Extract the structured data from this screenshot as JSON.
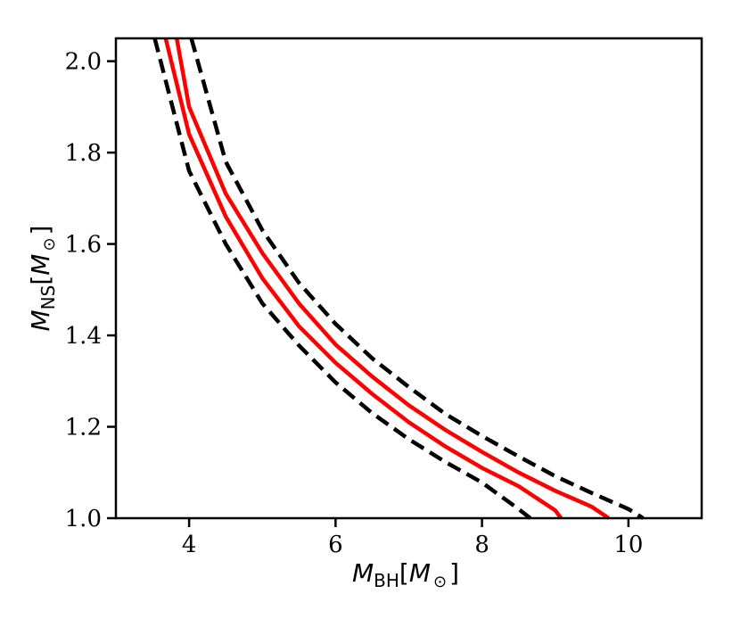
{
  "chart_data": {
    "type": "line",
    "xlabel": {
      "italic": "M",
      "sub": "BH",
      "open": "[",
      "unit": "M",
      "unit_sub": "⊙",
      "close": "]"
    },
    "ylabel": {
      "italic": "M",
      "sub": "NS",
      "open": "[",
      "unit": "M",
      "unit_sub": "⊙",
      "close": "]"
    },
    "xlim": [
      3.0,
      11.0
    ],
    "ylim": [
      1.0,
      2.05
    ],
    "x_ticks": [
      4,
      6,
      8,
      10
    ],
    "x_tick_labels": [
      "4",
      "6",
      "8",
      "10"
    ],
    "y_ticks": [
      1.0,
      1.2,
      1.4,
      1.6,
      1.8,
      2.0
    ],
    "y_tick_labels": [
      "1.0",
      "1.2",
      "1.4",
      "1.6",
      "1.8",
      "2.0"
    ],
    "grid": false,
    "legend": "none",
    "series": [
      {
        "style": "dashed",
        "color": "#000000",
        "x": [
          3.53,
          4.0,
          4.5,
          5.0,
          5.5,
          6.0,
          6.5,
          7.0,
          7.5,
          8.0,
          8.5,
          8.66
        ],
        "y": [
          2.05,
          1.76,
          1.6,
          1.47,
          1.378,
          1.297,
          1.23,
          1.173,
          1.123,
          1.078,
          1.02,
          1.0
        ]
      },
      {
        "style": "solid",
        "color": "#ff0000",
        "x": [
          3.68,
          4.0,
          4.5,
          5.0,
          5.5,
          6.0,
          6.5,
          7.0,
          7.5,
          8.0,
          8.5,
          9.0,
          9.08
        ],
        "y": [
          2.05,
          1.84,
          1.66,
          1.525,
          1.42,
          1.34,
          1.272,
          1.21,
          1.157,
          1.11,
          1.07,
          1.017,
          1.0
        ]
      },
      {
        "style": "solid",
        "color": "#ff0000",
        "x": [
          3.83,
          4.0,
          4.5,
          5.0,
          5.5,
          6.0,
          6.5,
          7.0,
          7.5,
          8.0,
          8.5,
          9.0,
          9.5,
          9.73
        ],
        "y": [
          2.05,
          1.9,
          1.71,
          1.58,
          1.47,
          1.38,
          1.31,
          1.247,
          1.193,
          1.145,
          1.1,
          1.06,
          1.025,
          1.0
        ]
      },
      {
        "style": "dashed",
        "color": "#000000",
        "x": [
          4.03,
          4.5,
          5.0,
          5.5,
          6.0,
          6.5,
          7.0,
          7.5,
          8.0,
          8.5,
          9.0,
          9.5,
          10.0,
          10.2
        ],
        "y": [
          2.05,
          1.78,
          1.63,
          1.515,
          1.425,
          1.35,
          1.287,
          1.228,
          1.18,
          1.135,
          1.092,
          1.055,
          1.02,
          1.0
        ]
      }
    ]
  }
}
